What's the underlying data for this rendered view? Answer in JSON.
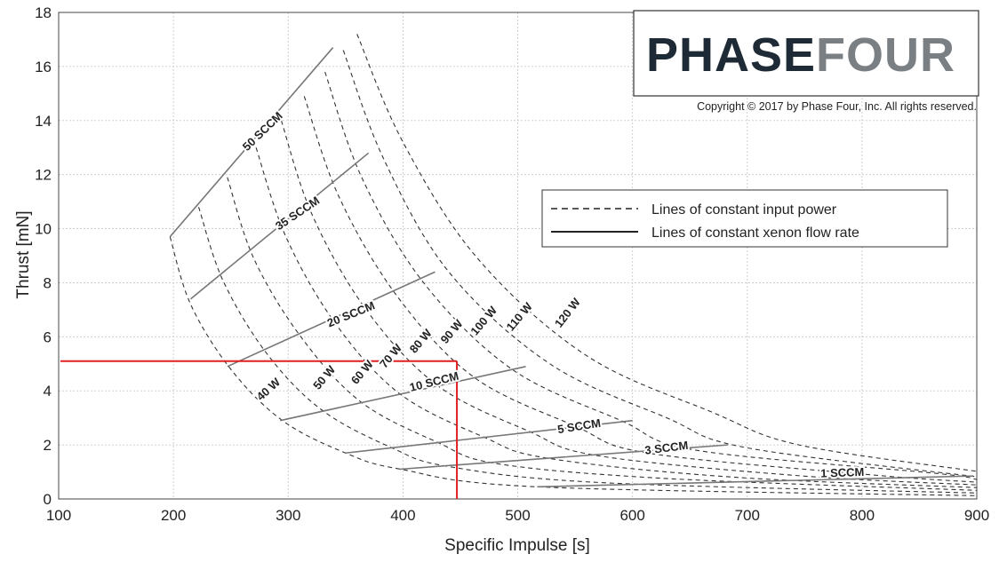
{
  "chart_data": {
    "type": "line",
    "xlabel": "Specific Impulse [s]",
    "ylabel": "Thrust [mN]",
    "xlim": [
      100,
      900
    ],
    "ylim": [
      0,
      18
    ],
    "x_ticks": [
      100,
      200,
      300,
      400,
      500,
      600,
      700,
      800,
      900
    ],
    "y_ticks": [
      0,
      2,
      4,
      6,
      8,
      10,
      12,
      14,
      16,
      18
    ],
    "grid": true,
    "legend_position": "right",
    "legend": {
      "dashed": "Lines of constant input power",
      "solid": "Lines of constant xenon flow rate"
    },
    "logo": {
      "part1": "PHASE",
      "part2": "FOUR",
      "color1": "#1e2a36",
      "color2": "#7a7f84"
    },
    "copyright": "Copyright © 2017 by Phase Four, Inc. All rights reserved.",
    "power_series": [
      {
        "name": "40 W",
        "points": [
          [
            197,
            9.7
          ],
          [
            215,
            7.2
          ],
          [
            250,
            4.8
          ],
          [
            295,
            2.9
          ],
          [
            350,
            1.7
          ],
          [
            398,
            1.1
          ],
          [
            517,
            0.45
          ],
          [
            900,
            0.12
          ]
        ]
      },
      {
        "name": "50 W",
        "points": [
          [
            222,
            10.8
          ],
          [
            243,
            8.1
          ],
          [
            281,
            5.4
          ],
          [
            329,
            3.3
          ],
          [
            390,
            1.9
          ],
          [
            440,
            1.2
          ],
          [
            575,
            0.6
          ],
          [
            900,
            0.22
          ]
        ]
      },
      {
        "name": "60 W",
        "points": [
          [
            247,
            11.9
          ],
          [
            270,
            8.9
          ],
          [
            311,
            6.0
          ],
          [
            363,
            3.6
          ],
          [
            430,
            2.1
          ],
          [
            483,
            1.3
          ],
          [
            633,
            0.75
          ],
          [
            900,
            0.32
          ]
        ]
      },
      {
        "name": "70 W",
        "points": [
          [
            272,
            13.0
          ],
          [
            298,
            9.7
          ],
          [
            341,
            6.5
          ],
          [
            397,
            3.9
          ],
          [
            470,
            2.3
          ],
          [
            527,
            1.5
          ],
          [
            690,
            0.8
          ],
          [
            900,
            0.42
          ]
        ]
      },
      {
        "name": "80 W",
        "points": [
          [
            294,
            14.0
          ],
          [
            321,
            10.5
          ],
          [
            368,
            7.0
          ],
          [
            430,
            4.2
          ],
          [
            510,
            2.5
          ],
          [
            570,
            1.6
          ],
          [
            748,
            0.85
          ],
          [
            900,
            0.52
          ]
        ]
      },
      {
        "name": "90 W",
        "points": [
          [
            314,
            14.9
          ],
          [
            344,
            11.2
          ],
          [
            395,
            7.5
          ],
          [
            462,
            4.5
          ],
          [
            550,
            2.7
          ],
          [
            613,
            1.7
          ],
          [
            806,
            0.9
          ],
          [
            900,
            0.62
          ]
        ]
      },
      {
        "name": "100 W",
        "points": [
          [
            332,
            15.8
          ],
          [
            364,
            11.9
          ],
          [
            418,
            8.0
          ],
          [
            495,
            4.8
          ],
          [
            590,
            2.9
          ],
          [
            656,
            1.8
          ],
          [
            864,
            0.95
          ],
          [
            900,
            0.72
          ]
        ]
      },
      {
        "name": "110 W",
        "points": [
          [
            348,
            16.6
          ],
          [
            383,
            12.6
          ],
          [
            440,
            8.4
          ],
          [
            528,
            5.0
          ],
          [
            630,
            3.0
          ],
          [
            699,
            1.9
          ],
          [
            900,
            0.82
          ]
        ]
      },
      {
        "name": "120 W",
        "points": [
          [
            360,
            17.2
          ],
          [
            400,
            13.2
          ],
          [
            465,
            8.9
          ],
          [
            560,
            5.3
          ],
          [
            670,
            3.2
          ],
          [
            745,
            2.0
          ],
          [
            900,
            1.02
          ]
        ]
      }
    ],
    "flow_series": [
      {
        "name": "50 SCCM",
        "points": [
          [
            197,
            9.7
          ],
          [
            339,
            16.7
          ]
        ]
      },
      {
        "name": "35 SCCM",
        "points": [
          [
            215,
            7.4
          ],
          [
            370,
            12.8
          ]
        ]
      },
      {
        "name": "20 SCCM",
        "points": [
          [
            247,
            4.9
          ],
          [
            428,
            8.4
          ]
        ]
      },
      {
        "name": "10 SCCM",
        "points": [
          [
            293,
            2.9
          ],
          [
            507,
            4.9
          ]
        ]
      },
      {
        "name": "5 SCCM",
        "points": [
          [
            350,
            1.7
          ],
          [
            600,
            2.9
          ]
        ]
      },
      {
        "name": "3 SCCM",
        "points": [
          [
            397,
            1.1
          ],
          [
            683,
            2.0
          ]
        ]
      },
      {
        "name": "1 SCCM",
        "points": [
          [
            517,
            0.45
          ],
          [
            897,
            0.85
          ]
        ]
      }
    ],
    "highlight": {
      "color": "#e02020",
      "x": 447,
      "y": 5.1
    },
    "power_labels": [
      {
        "text": "40 W",
        "x": 285,
        "y": 3.95,
        "angle": -42
      },
      {
        "text": "50 W",
        "x": 334,
        "y": 4.4,
        "angle": -50
      },
      {
        "text": "60 W",
        "x": 367,
        "y": 4.6,
        "angle": -50
      },
      {
        "text": "70 W",
        "x": 392,
        "y": 5.2,
        "angle": -50
      },
      {
        "text": "80 W",
        "x": 418,
        "y": 5.75,
        "angle": -50
      },
      {
        "text": "90 W",
        "x": 445,
        "y": 6.1,
        "angle": -50
      },
      {
        "text": "100 W",
        "x": 473,
        "y": 6.5,
        "angle": -50
      },
      {
        "text": "110 W",
        "x": 504,
        "y": 6.65,
        "angle": -50
      },
      {
        "text": "120 W",
        "x": 546,
        "y": 6.8,
        "angle": -52
      }
    ],
    "flow_labels": [
      {
        "text": "50 SCCM",
        "x": 280,
        "y": 13.5,
        "angle": -44
      },
      {
        "text": "35 SCCM",
        "x": 310,
        "y": 10.45,
        "angle": -34
      },
      {
        "text": "20 SCCM",
        "x": 356,
        "y": 6.7,
        "angle": -22
      },
      {
        "text": "10 SCCM",
        "x": 428,
        "y": 4.2,
        "angle": -14
      },
      {
        "text": "5 SCCM",
        "x": 554,
        "y": 2.55,
        "angle": -9
      },
      {
        "text": "3 SCCM",
        "x": 630,
        "y": 1.75,
        "angle": -7
      },
      {
        "text": "1 SCCM",
        "x": 783,
        "y": 0.83,
        "angle": -2
      }
    ]
  }
}
